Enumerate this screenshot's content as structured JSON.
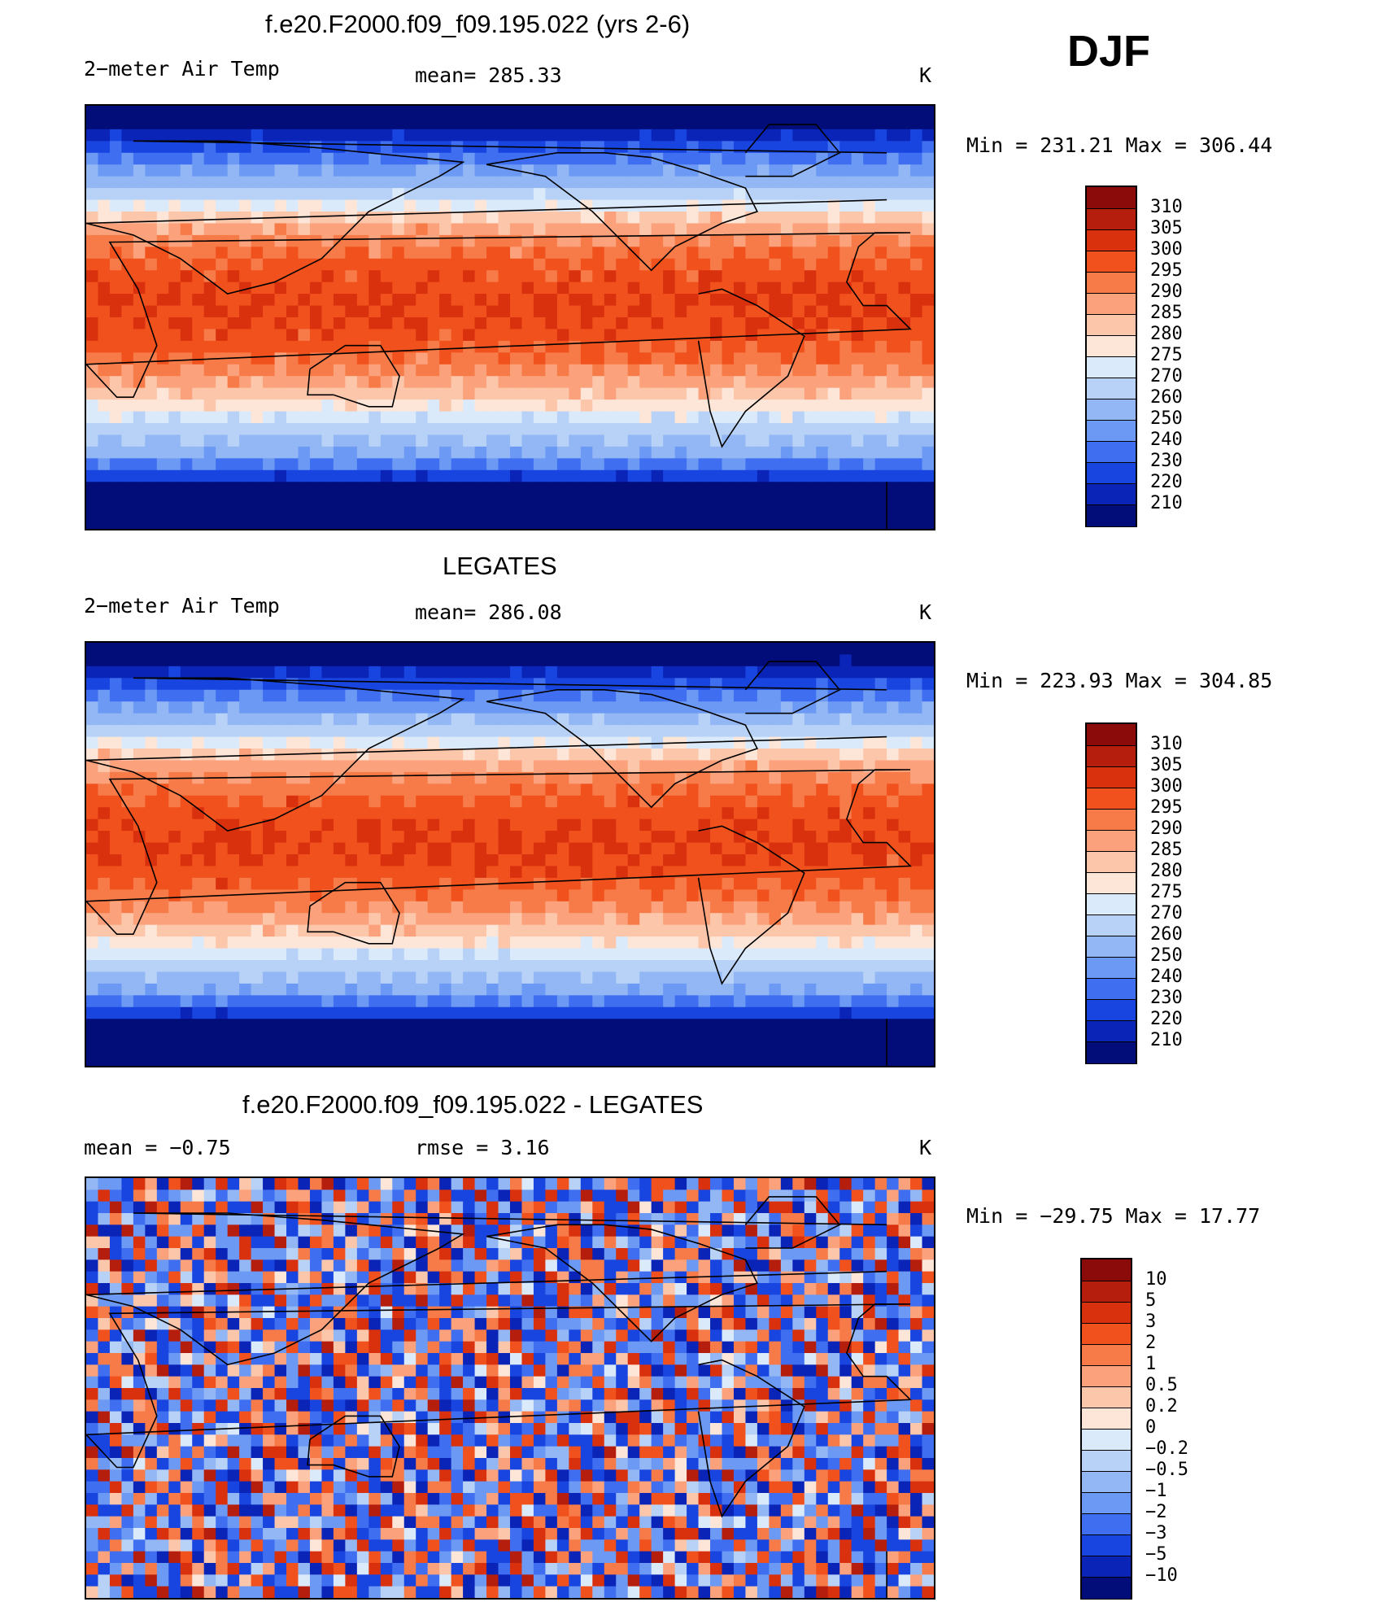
{
  "figure_label": "DJF",
  "chart_data": [
    {
      "type": "heatmap",
      "title": "f.e20.F2000.f09_f09.195.022 (yrs 2-6)",
      "left_label": "2−meter Air Temp",
      "center_label": "mean=  285.33",
      "units": "K",
      "minmax": "Min  =  231.21  Max  =  306.44",
      "min": 231.21,
      "max": 306.44,
      "mean": 285.33,
      "colorbar": {
        "levels": [
          "310",
          "305",
          "300",
          "295",
          "290",
          "285",
          "280",
          "275",
          "270",
          "260",
          "250",
          "240",
          "230",
          "220",
          "210"
        ],
        "colors": [
          "#8b0a0a",
          "#b51e0c",
          "#d9300e",
          "#f0511d",
          "#f77b48",
          "#fba27c",
          "#fcc6aa",
          "#fde6d8",
          "#dbeafa",
          "#b7d2f6",
          "#93b7f5",
          "#6c99f3",
          "#3f6ff0",
          "#1845e0",
          "#0a24b8",
          "#020d7a"
        ]
      },
      "field": "model"
    },
    {
      "type": "heatmap",
      "title": "LEGATES",
      "left_label": "2−meter Air Temp",
      "center_label": "mean=  286.08",
      "units": "K",
      "minmax": "Min  =  223.93  Max  =  304.85",
      "min": 223.93,
      "max": 304.85,
      "mean": 286.08,
      "colorbar": {
        "levels": [
          "310",
          "305",
          "300",
          "295",
          "290",
          "285",
          "280",
          "275",
          "270",
          "260",
          "250",
          "240",
          "230",
          "220",
          "210"
        ],
        "colors": [
          "#8b0a0a",
          "#b51e0c",
          "#d9300e",
          "#f0511d",
          "#f77b48",
          "#fba27c",
          "#fcc6aa",
          "#fde6d8",
          "#dbeafa",
          "#b7d2f6",
          "#93b7f5",
          "#6c99f3",
          "#3f6ff0",
          "#1845e0",
          "#0a24b8",
          "#020d7a"
        ]
      },
      "field": "obs"
    },
    {
      "type": "heatmap",
      "title": "f.e20.F2000.f09_f09.195.022 - LEGATES",
      "left_label": "mean  =    −0.75",
      "center_label": "rmse  =     3.16",
      "units": "K",
      "minmax": "Min  =  −29.75  Max  =    17.77",
      "min": -29.75,
      "max": 17.77,
      "mean": -0.75,
      "rmse": 3.16,
      "colorbar": {
        "levels": [
          "10",
          "5",
          "3",
          "2",
          "1",
          "0.5",
          "0.2",
          "0",
          "−0.2",
          "−0.5",
          "−1",
          "−2",
          "−3",
          "−5",
          "−10"
        ],
        "colors": [
          "#8b0a0a",
          "#b51e0c",
          "#d9300e",
          "#f0511d",
          "#f77b48",
          "#fba27c",
          "#fcc6aa",
          "#fde6d8",
          "#dbeafa",
          "#b7d2f6",
          "#93b7f5",
          "#6c99f3",
          "#3f6ff0",
          "#1845e0",
          "#0a24b8",
          "#020d7a"
        ]
      },
      "field": "diff"
    }
  ]
}
